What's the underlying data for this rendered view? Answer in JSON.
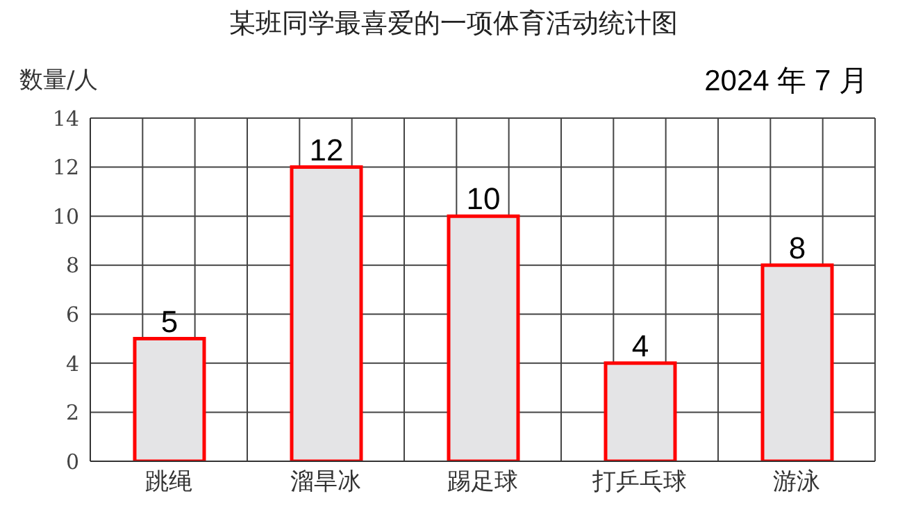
{
  "chart_data": {
    "type": "bar",
    "title": "某班同学最喜爱的一项体育活动统计图",
    "ylabel": "数量/人",
    "annotations": [
      "2024 年 7 月"
    ],
    "categories": [
      "跳绳",
      "溜旱冰",
      "踢足球",
      "打乒乓球",
      "游泳"
    ],
    "values": [
      5,
      12,
      10,
      4,
      8
    ],
    "color": "#e4e4e6",
    "ylim": [
      0,
      14
    ],
    "yticks": [
      0,
      2,
      4,
      6,
      8,
      10,
      12,
      14
    ],
    "grid": true,
    "data_labels": true
  }
}
